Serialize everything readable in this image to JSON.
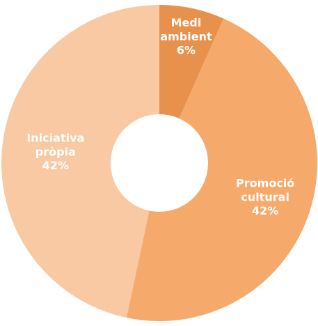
{
  "chart_data": {
    "type": "donut",
    "categories": [
      "Medi ambient",
      "Promoció cultural",
      "Iniciativa pròpia"
    ],
    "values": [
      6,
      42,
      42
    ],
    "value_labels": [
      "6%",
      "42%",
      "42%"
    ],
    "colors": [
      "#e8914c",
      "#f5aa6b",
      "#f8c9a3"
    ]
  }
}
